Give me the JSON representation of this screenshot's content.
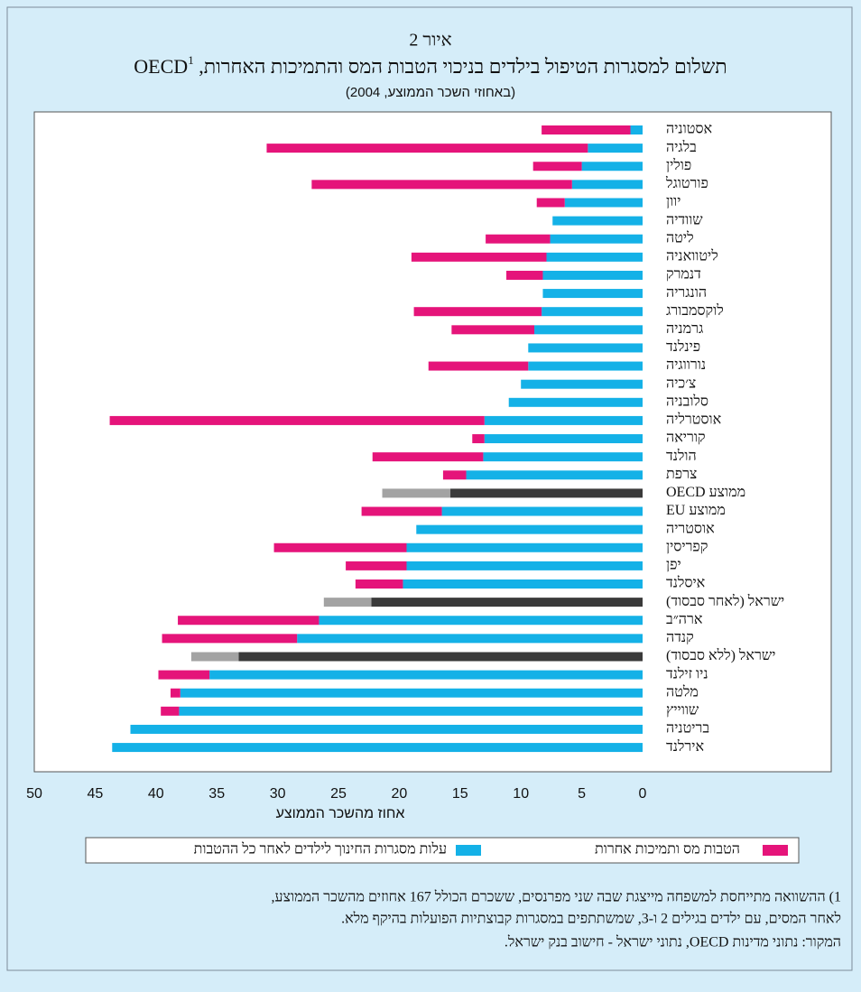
{
  "chart_data": {
    "type": "stacked-barh",
    "figure_label": "איור 2",
    "title": "תשלום למסגרות הטיפול בילדים בניכוי הטבות המס והתמיכות האחרות, OECD",
    "title_note_marker": "1",
    "subtitle": "(באחוזי השכר הממוצע, 2004)",
    "xlabel": "אחוז מהשכר הממוצע",
    "categories": [
      "אסטוניה",
      "בלגיה",
      "פולין",
      "פורטוגל",
      "יוון",
      "שוודיה",
      "ליטה",
      "ליטוואניה",
      "דנמרק",
      "הונגריה",
      "לוקסמבורג",
      "גרמניה",
      "פינלנד",
      "נורווגיה",
      "צ׳כיה",
      "סלובניה",
      "אוסטרליה",
      "קוריאה",
      "הולנד",
      "צרפת",
      "ממוצע OECD",
      "ממוצע EU",
      "אוסטריה",
      "קפריסין",
      "יפן",
      "איסלנד",
      "ישראל (לאחר סבסוד)",
      "ארה״ב",
      "קנדה",
      "ישראל (ללא סבסוד)",
      "ניו זילנד",
      "מלטה",
      "שווייץ",
      "בריטניה",
      "אירלנד"
    ],
    "series": [
      {
        "name": "עלות מסגרות החינוך לילדים לאחר כל ההטבות",
        "color": "#14b1e7",
        "highlight_color": "#3a3a3a",
        "values": [
          1.0,
          4.5,
          5.0,
          5.8,
          6.4,
          7.4,
          7.6,
          7.9,
          8.2,
          8.2,
          8.3,
          8.9,
          9.4,
          9.4,
          10.0,
          11.0,
          13.0,
          13.0,
          13.1,
          14.5,
          15.8,
          16.5,
          18.6,
          19.4,
          19.4,
          19.7,
          22.3,
          26.6,
          28.4,
          33.2,
          35.6,
          38.0,
          38.1,
          42.1,
          43.6
        ]
      },
      {
        "name": "הטבות מס ותמיכות אחרות",
        "color": "#e5147a",
        "highlight_color": "#a3a3a3",
        "values": [
          7.3,
          26.4,
          4.0,
          21.4,
          2.3,
          0,
          5.3,
          11.1,
          3.0,
          0,
          10.5,
          6.8,
          0,
          8.2,
          0,
          0,
          30.8,
          1.0,
          9.1,
          1.9,
          5.6,
          6.6,
          0,
          10.9,
          5.0,
          3.9,
          3.9,
          11.6,
          11.1,
          3.9,
          4.2,
          0.8,
          1.5,
          0,
          0
        ]
      }
    ],
    "highlighted": [
      20,
      26,
      29
    ],
    "xlim": [
      0,
      50
    ],
    "x_inverted": true,
    "xticks": [
      0,
      5,
      10,
      15,
      20,
      25,
      30,
      35,
      40,
      45,
      50
    ],
    "footnote": [
      "1) ההשוואה מתייחסת למשפחה מייצגת שבה שני מפרנסים, ששכרם הכולל 167 אחוזים מהשכר הממוצע,",
      "לאחר המסים, עם ילדים בגילים 2 ו-3, שמשתתפים במסגרות קבוצתיות הפועלות בהיקף מלא."
    ],
    "source": "המקור: נתוני מדינות OECD, נתוני ישראל - חישוב בנק ישראל."
  }
}
